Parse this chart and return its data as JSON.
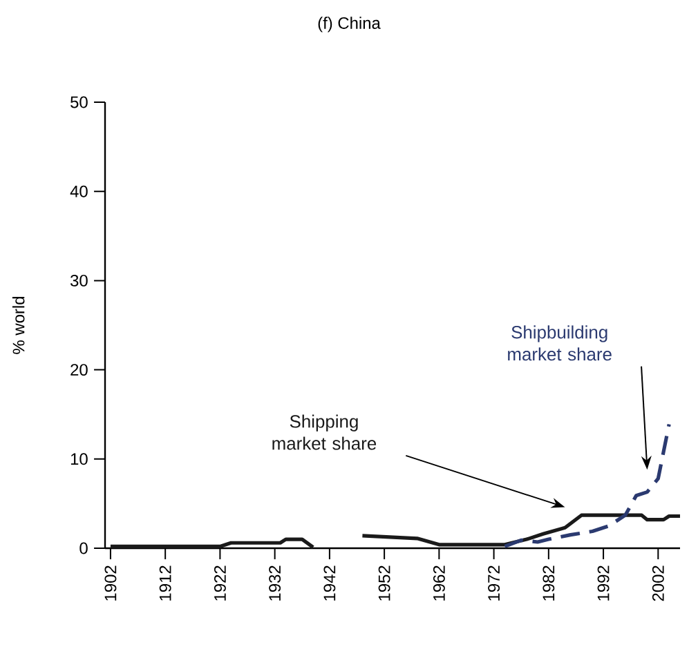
{
  "chart_data": {
    "type": "line",
    "title": "(f) China",
    "ylabel": "% world",
    "series": [
      {
        "name": "Shipping market share",
        "color": "#1a1a1a",
        "line_style": "solid",
        "x": [
          1902,
          1922,
          1924,
          1933,
          1934,
          1937,
          1939,
          1943,
          1948,
          1958,
          1962,
          1974,
          1978,
          1981,
          1985,
          1988,
          1999,
          2000,
          2003,
          2004,
          2006
        ],
        "values": [
          0.2,
          0.2,
          0.6,
          0.6,
          1.0,
          1.0,
          0.1,
          null,
          1.4,
          1.1,
          0.4,
          0.4,
          1.0,
          1.6,
          2.3,
          3.7,
          3.7,
          3.2,
          3.2,
          3.6,
          3.6
        ]
      },
      {
        "name": "Shipbuilding market share",
        "color": "#2b3a70",
        "line_style": "dashed",
        "x": [
          1974,
          1977,
          1980,
          1982,
          1986,
          1990,
          1993,
          1996,
          1998,
          2000,
          2002,
          2004
        ],
        "values": [
          0.2,
          0.9,
          0.7,
          1.0,
          1.5,
          1.9,
          2.5,
          3.7,
          5.9,
          6.3,
          7.8,
          13.9
        ]
      }
    ],
    "xlim": [
      1901,
      2006
    ],
    "ylim": [
      0,
      50
    ],
    "xticks": [
      1902,
      1912,
      1922,
      1932,
      1942,
      1952,
      1962,
      1972,
      1982,
      1992,
      2002
    ],
    "yticks": [
      0,
      10,
      20,
      30,
      40,
      50
    ],
    "grid": false,
    "legend": false
  }
}
